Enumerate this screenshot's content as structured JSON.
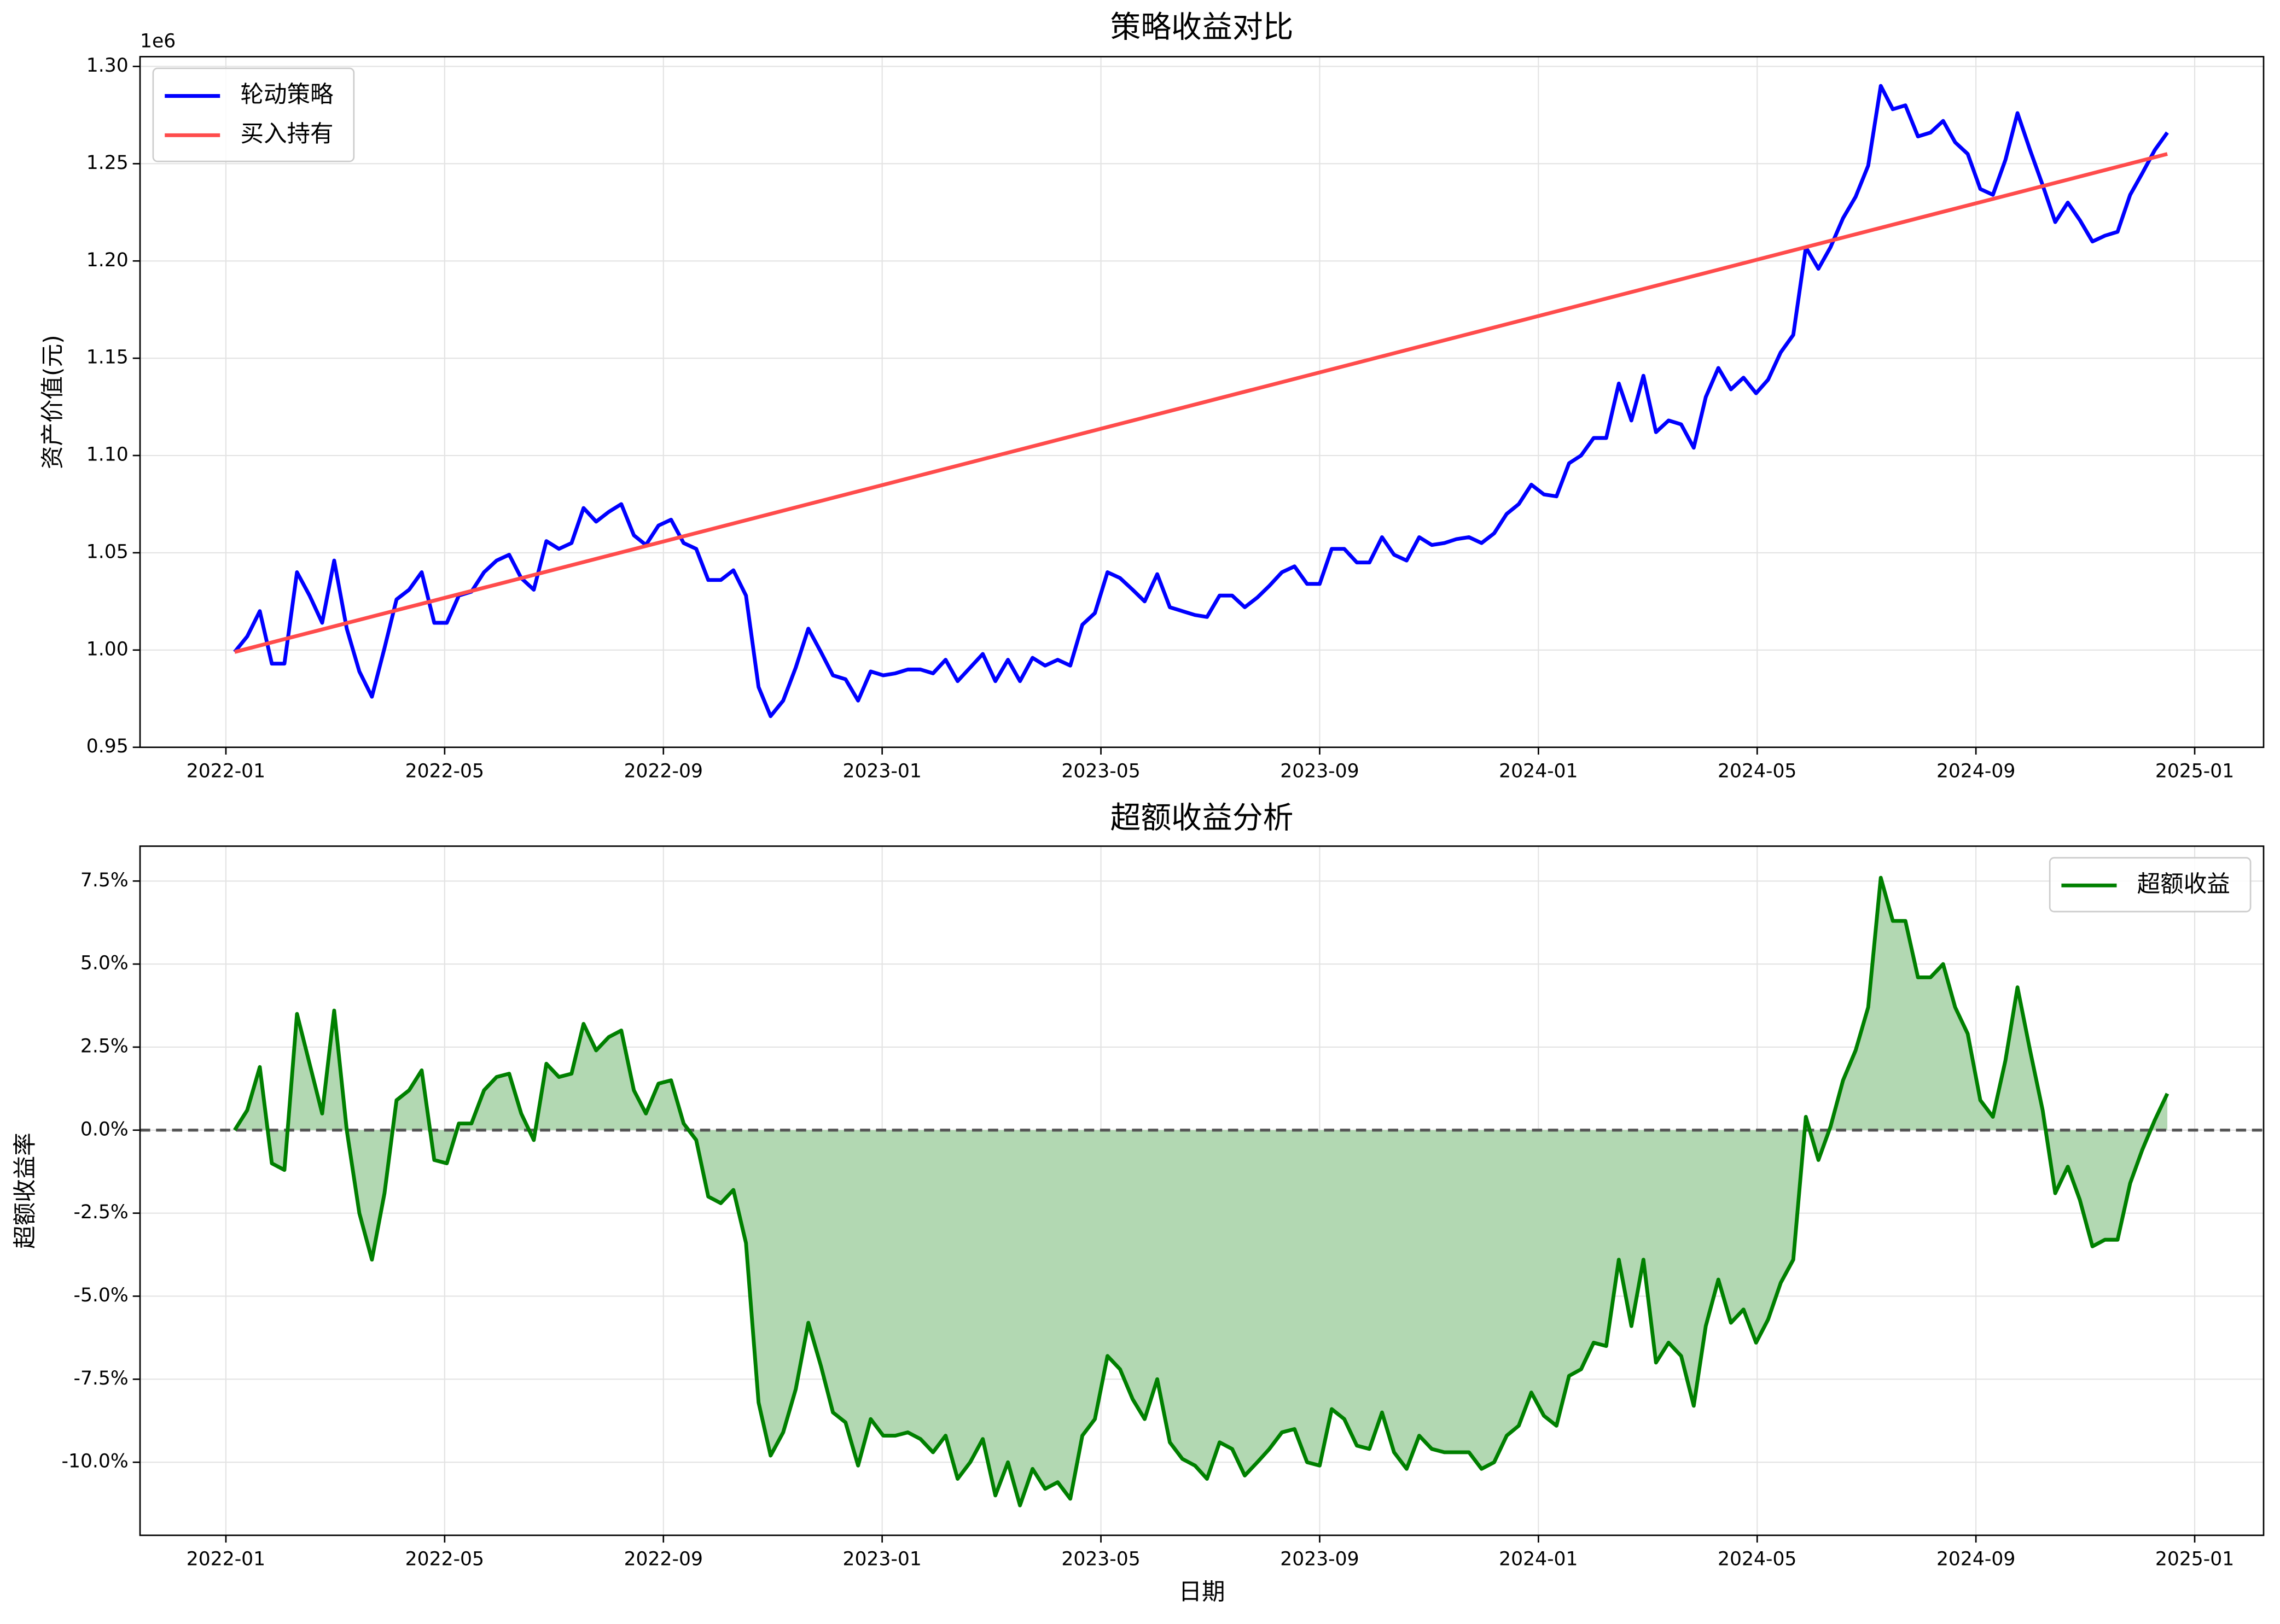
{
  "chart_data": [
    {
      "type": "line",
      "title": "策略收益对比",
      "ylabel": "资产价值(元)",
      "offset_label": "1e6",
      "grid": true,
      "legend": "upper left",
      "xlim": [
        -1.57,
        37.26
      ],
      "ylim": [
        0.95,
        1.305
      ],
      "xticks": [
        {
          "value": 0,
          "label": "2022-01"
        },
        {
          "value": 4,
          "label": "2022-05"
        },
        {
          "value": 8,
          "label": "2022-09"
        },
        {
          "value": 12,
          "label": "2023-01"
        },
        {
          "value": 16,
          "label": "2023-05"
        },
        {
          "value": 20,
          "label": "2023-09"
        },
        {
          "value": 24,
          "label": "2024-01"
        },
        {
          "value": 28,
          "label": "2024-05"
        },
        {
          "value": 32,
          "label": "2024-09"
        },
        {
          "value": 36,
          "label": "2025-01"
        }
      ],
      "yticks": [
        0.95,
        {
          "value": 1.0,
          "label": "1.00"
        },
        1.05,
        {
          "value": 1.1,
          "label": "1.10"
        },
        1.15,
        {
          "value": 1.2,
          "label": "1.20"
        },
        1.25,
        {
          "value": 1.3,
          "label": "1.30"
        }
      ],
      "series": [
        {
          "name": "轮动策略",
          "color": "#0000ff",
          "x": [
            0.16,
            0.39,
            0.62,
            0.84,
            1.07,
            1.3,
            1.53,
            1.76,
            1.98,
            2.21,
            2.44,
            2.67,
            2.9,
            3.12,
            3.35,
            3.58,
            3.81,
            4.04,
            4.26,
            4.49,
            4.72,
            4.95,
            5.18,
            5.4,
            5.63,
            5.86,
            6.09,
            6.32,
            6.54,
            6.77,
            7.0,
            7.23,
            7.46,
            7.68,
            7.91,
            8.14,
            8.37,
            8.6,
            8.82,
            9.05,
            9.28,
            9.51,
            9.74,
            9.96,
            10.19,
            10.42,
            10.65,
            10.88,
            11.1,
            11.33,
            11.56,
            11.79,
            12.02,
            12.24,
            12.47,
            12.7,
            12.93,
            13.16,
            13.38,
            13.61,
            13.84,
            14.07,
            14.3,
            14.52,
            14.75,
            14.98,
            15.21,
            15.44,
            15.66,
            15.89,
            16.12,
            16.35,
            16.58,
            16.8,
            17.03,
            17.26,
            17.49,
            17.72,
            17.94,
            18.17,
            18.4,
            18.63,
            18.86,
            19.08,
            19.31,
            19.54,
            19.77,
            20.0,
            20.22,
            20.45,
            20.68,
            20.91,
            21.14,
            21.36,
            21.59,
            21.82,
            22.05,
            22.28,
            22.5,
            22.73,
            22.96,
            23.19,
            23.42,
            23.64,
            23.87,
            24.1,
            24.33,
            24.56,
            24.78,
            25.01,
            25.24,
            25.47,
            25.7,
            25.92,
            26.15,
            26.38,
            26.61,
            26.84,
            27.06,
            27.29,
            27.52,
            27.75,
            27.98,
            28.2,
            28.43,
            28.66,
            28.89,
            29.12,
            29.34,
            29.57,
            29.8,
            30.03,
            30.26,
            30.48,
            30.71,
            30.94,
            31.17,
            31.4,
            31.62,
            31.85,
            32.08,
            32.31,
            32.54,
            32.76,
            32.99,
            33.22,
            33.45,
            33.68,
            33.9,
            34.13,
            34.36,
            34.59,
            34.82,
            35.04,
            35.27,
            35.5
          ],
          "values": [
            0.999,
            1.007,
            1.02,
            0.993,
            0.993,
            1.04,
            1.028,
            1.014,
            1.046,
            1.011,
            0.989,
            0.976,
            1.001,
            1.026,
            1.031,
            1.04,
            1.014,
            1.014,
            1.028,
            1.03,
            1.04,
            1.046,
            1.049,
            1.037,
            1.031,
            1.056,
            1.052,
            1.055,
            1.073,
            1.066,
            1.071,
            1.075,
            1.059,
            1.054,
            1.064,
            1.067,
            1.055,
            1.052,
            1.036,
            1.036,
            1.041,
            1.028,
            0.981,
            0.966,
            0.974,
            0.991,
            1.011,
            0.999,
            0.987,
            0.985,
            0.974,
            0.989,
            0.987,
            0.988,
            0.99,
            0.99,
            0.988,
            0.995,
            0.984,
            0.991,
            0.998,
            0.984,
            0.995,
            0.984,
            0.996,
            0.992,
            0.995,
            0.992,
            1.013,
            1.019,
            1.04,
            1.037,
            1.031,
            1.025,
            1.039,
            1.022,
            1.02,
            1.018,
            1.017,
            1.028,
            1.028,
            1.022,
            1.027,
            1.033,
            1.04,
            1.043,
            1.034,
            1.034,
            1.052,
            1.052,
            1.045,
            1.045,
            1.058,
            1.049,
            1.046,
            1.058,
            1.054,
            1.055,
            1.057,
            1.058,
            1.055,
            1.06,
            1.07,
            1.075,
            1.085,
            1.08,
            1.079,
            1.096,
            1.1,
            1.109,
            1.109,
            1.137,
            1.118,
            1.141,
            1.112,
            1.118,
            1.116,
            1.104,
            1.13,
            1.145,
            1.134,
            1.14,
            1.132,
            1.139,
            1.153,
            1.162,
            1.207,
            1.196,
            1.207,
            1.222,
            1.233,
            1.249,
            1.29,
            1.278,
            1.28,
            1.264,
            1.266,
            1.272,
            1.261,
            1.255,
            1.237,
            1.234,
            1.252,
            1.276,
            1.257,
            1.239,
            1.22,
            1.23,
            1.221,
            1.21,
            1.213,
            1.215,
            1.234,
            1.245,
            1.257,
            1.266
          ]
        },
        {
          "name": "买入持有",
          "color": "#ff4c4c",
          "x": [
            0.16,
            35.5
          ],
          "values": [
            0.999,
            1.255
          ]
        }
      ]
    },
    {
      "type": "line",
      "title": "超额收益分析",
      "ylabel": "超额收益率",
      "xlabel": "日期",
      "grid": true,
      "legend": "upper right",
      "fill": "#b2d8b2",
      "reference_line": 0,
      "xlim": [
        -1.57,
        37.26
      ],
      "ylim": [
        -12.2,
        8.55
      ],
      "xticks": [
        {
          "value": 0,
          "label": "2022-01"
        },
        {
          "value": 4,
          "label": "2022-05"
        },
        {
          "value": 8,
          "label": "2022-09"
        },
        {
          "value": 12,
          "label": "2023-01"
        },
        {
          "value": 16,
          "label": "2023-05"
        },
        {
          "value": 20,
          "label": "2023-09"
        },
        {
          "value": 24,
          "label": "2024-01"
        },
        {
          "value": 28,
          "label": "2024-05"
        },
        {
          "value": 32,
          "label": "2024-09"
        },
        {
          "value": 36,
          "label": "2025-01"
        }
      ],
      "yticks": [
        {
          "value": -10,
          "label": "-10.0%"
        },
        {
          "value": -7.5,
          "label": "-7.5%"
        },
        {
          "value": -5,
          "label": "-5.0%"
        },
        {
          "value": -2.5,
          "label": "-2.5%"
        },
        {
          "value": 0,
          "label": "0.0%"
        },
        {
          "value": 2.5,
          "label": "2.5%"
        },
        {
          "value": 5,
          "label": "5.0%"
        },
        {
          "value": 7.5,
          "label": "7.5%"
        }
      ],
      "series": [
        {
          "name": "超额收益",
          "color": "#008000",
          "x": [
            0.16,
            0.39,
            0.62,
            0.84,
            1.07,
            1.3,
            1.53,
            1.76,
            1.98,
            2.21,
            2.44,
            2.67,
            2.9,
            3.12,
            3.35,
            3.58,
            3.81,
            4.04,
            4.26,
            4.49,
            4.72,
            4.95,
            5.18,
            5.4,
            5.63,
            5.86,
            6.09,
            6.32,
            6.54,
            6.77,
            7.0,
            7.23,
            7.46,
            7.68,
            7.91,
            8.14,
            8.37,
            8.6,
            8.82,
            9.05,
            9.28,
            9.51,
            9.74,
            9.96,
            10.19,
            10.42,
            10.65,
            10.88,
            11.1,
            11.33,
            11.56,
            11.79,
            12.02,
            12.24,
            12.47,
            12.7,
            12.93,
            13.16,
            13.38,
            13.61,
            13.84,
            14.07,
            14.3,
            14.52,
            14.75,
            14.98,
            15.21,
            15.44,
            15.66,
            15.89,
            16.12,
            16.35,
            16.58,
            16.8,
            17.03,
            17.26,
            17.49,
            17.72,
            17.94,
            18.17,
            18.4,
            18.63,
            18.86,
            19.08,
            19.31,
            19.54,
            19.77,
            20.0,
            20.22,
            20.45,
            20.68,
            20.91,
            21.14,
            21.36,
            21.59,
            21.82,
            22.05,
            22.28,
            22.5,
            22.73,
            22.96,
            23.19,
            23.42,
            23.64,
            23.87,
            24.1,
            24.33,
            24.56,
            24.78,
            25.01,
            25.24,
            25.47,
            25.7,
            25.92,
            26.15,
            26.38,
            26.61,
            26.84,
            27.06,
            27.29,
            27.52,
            27.75,
            27.98,
            28.2,
            28.43,
            28.66,
            28.89,
            29.12,
            29.34,
            29.57,
            29.8,
            30.03,
            30.26,
            30.48,
            30.71,
            30.94,
            31.17,
            31.4,
            31.62,
            31.85,
            32.08,
            32.31,
            32.54,
            32.76,
            32.99,
            33.22,
            33.45,
            33.68,
            33.9,
            34.13,
            34.36,
            34.59,
            34.82,
            35.04,
            35.27,
            35.5
          ],
          "values": [
            0.0,
            0.6,
            1.9,
            -1.0,
            -1.2,
            3.5,
            2.0,
            0.5,
            3.6,
            0.0,
            -2.5,
            -3.9,
            -1.9,
            0.9,
            1.2,
            1.8,
            -0.9,
            -1.0,
            0.2,
            0.2,
            1.2,
            1.6,
            1.7,
            0.5,
            -0.3,
            2.0,
            1.6,
            1.7,
            3.2,
            2.4,
            2.8,
            3.0,
            1.2,
            0.5,
            1.4,
            1.5,
            0.2,
            -0.3,
            -2.0,
            -2.2,
            -1.8,
            -3.4,
            -8.2,
            -9.8,
            -9.1,
            -7.8,
            -5.8,
            -7.1,
            -8.5,
            -8.8,
            -10.1,
            -8.7,
            -9.2,
            -9.2,
            -9.1,
            -9.3,
            -9.7,
            -9.2,
            -10.5,
            -10.0,
            -9.3,
            -11.0,
            -10.0,
            -11.3,
            -10.2,
            -10.8,
            -10.6,
            -11.1,
            -9.2,
            -8.7,
            -6.8,
            -7.2,
            -8.1,
            -8.7,
            -7.5,
            -9.4,
            -9.9,
            -10.1,
            -10.5,
            -9.4,
            -9.6,
            -10.4,
            -10.0,
            -9.6,
            -9.1,
            -9.0,
            -10.0,
            -10.1,
            -8.4,
            -8.7,
            -9.5,
            -9.6,
            -8.5,
            -9.7,
            -10.2,
            -9.2,
            -9.6,
            -9.7,
            -9.7,
            -9.7,
            -10.2,
            -10.0,
            -9.2,
            -8.9,
            -7.9,
            -8.6,
            -8.9,
            -7.4,
            -7.2,
            -6.4,
            -6.5,
            -3.9,
            -5.9,
            -3.9,
            -7.0,
            -6.4,
            -6.8,
            -8.3,
            -5.9,
            -4.5,
            -5.8,
            -5.4,
            -6.4,
            -5.7,
            -4.6,
            -3.9,
            0.4,
            -0.9,
            0.1,
            1.5,
            2.4,
            3.7,
            7.6,
            6.3,
            6.3,
            4.6,
            4.6,
            5.0,
            3.7,
            2.9,
            0.9,
            0.4,
            2.1,
            4.3,
            2.4,
            0.6,
            -1.9,
            -1.1,
            -2.1,
            -3.5,
            -3.3,
            -3.3,
            -1.6,
            -0.6,
            0.3,
            1.1
          ]
        }
      ]
    }
  ]
}
